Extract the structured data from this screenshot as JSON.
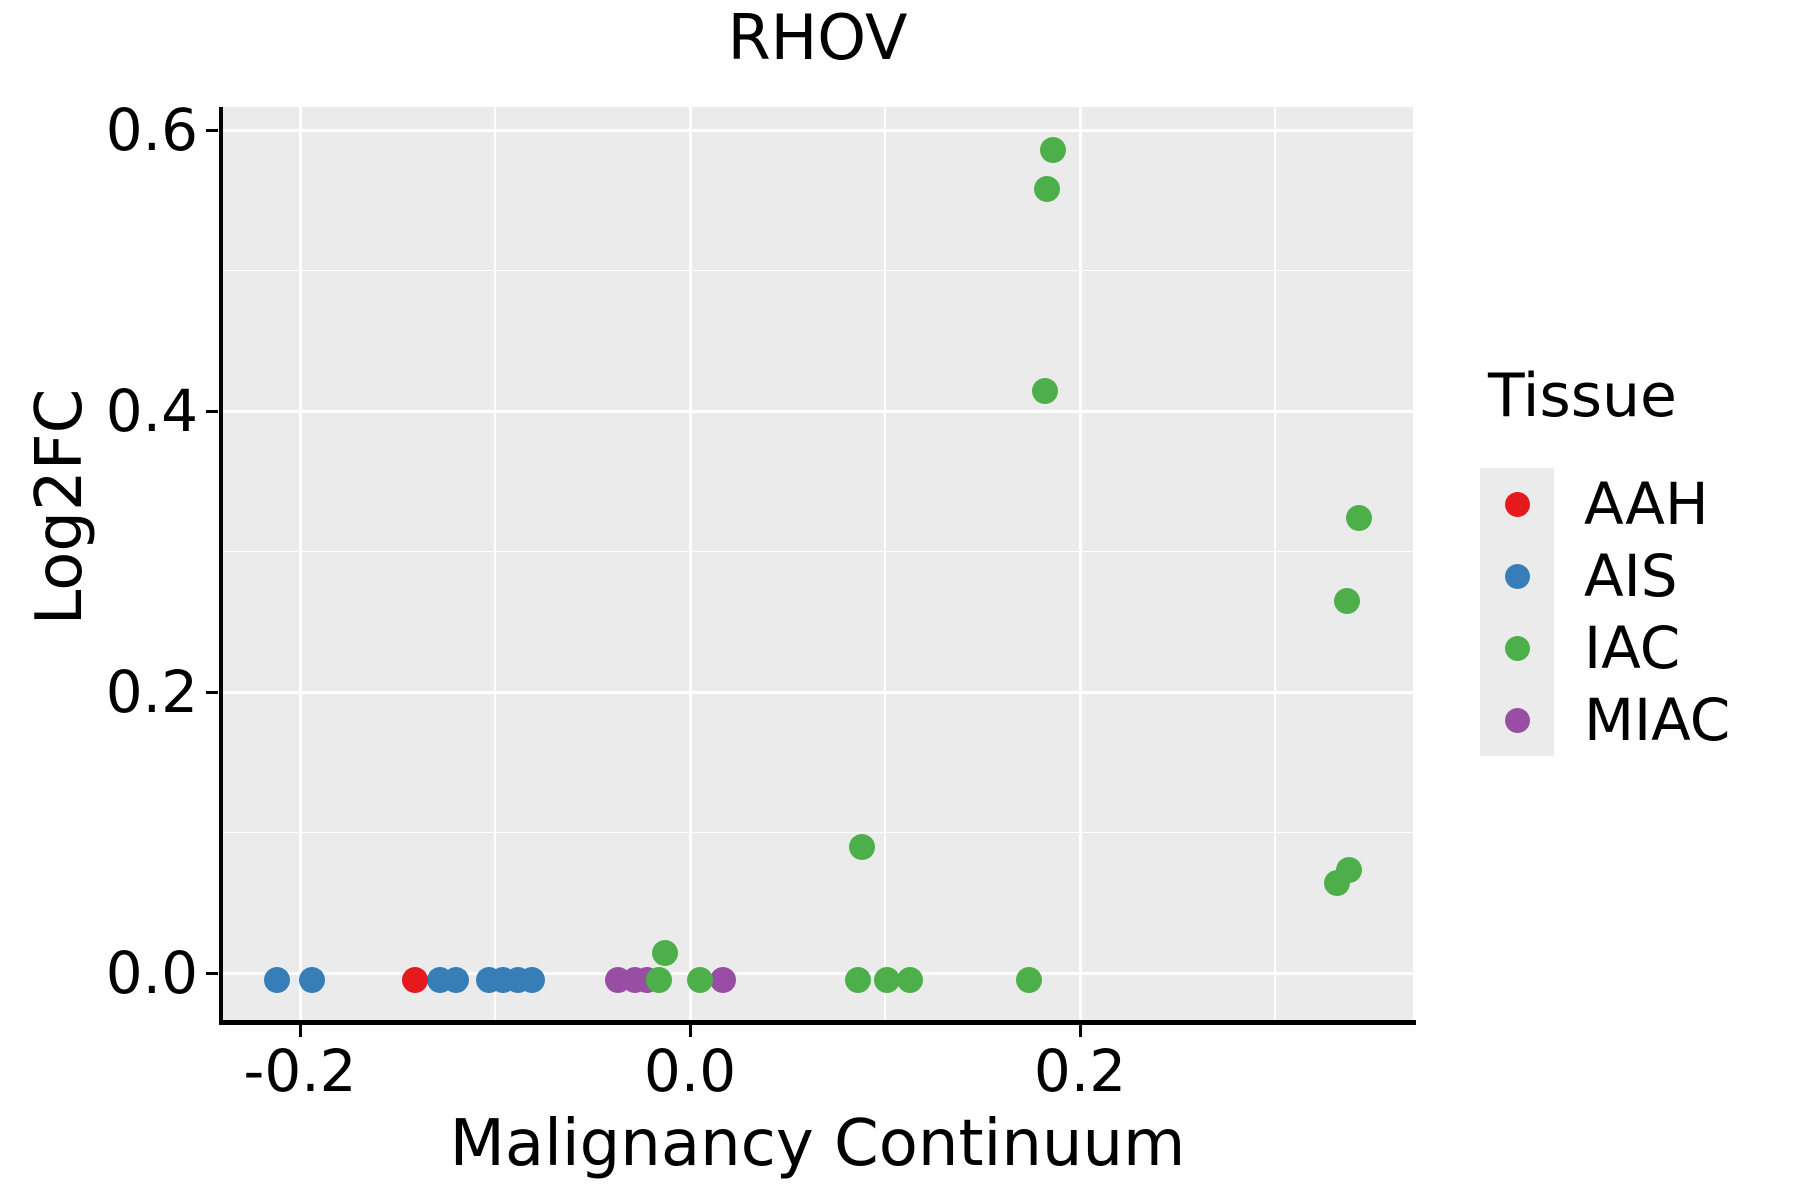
{
  "title": "RHOV",
  "axes": {
    "x": {
      "label": "Malignancy Continuum",
      "tick_labels": [
        "-0.2",
        "0.0",
        "0.2"
      ],
      "tick_values": [
        -0.2,
        0.0,
        0.2
      ],
      "minor_tick_values": [
        -0.1,
        0.1,
        0.3
      ],
      "range": [
        -0.24,
        0.371
      ]
    },
    "y": {
      "label": "Log2FC",
      "tick_labels": [
        "0.0",
        "0.2",
        "0.4",
        "0.6"
      ],
      "tick_values": [
        0.0,
        0.2,
        0.4,
        0.6
      ],
      "minor_tick_values": [
        0.1,
        0.3,
        0.5
      ],
      "range": [
        -0.033,
        0.616
      ]
    }
  },
  "legend": {
    "title": "Tissue",
    "entries": [
      {
        "label": "AAH",
        "color": "#E41A1C"
      },
      {
        "label": "AIS",
        "color": "#377EB8"
      },
      {
        "label": "IAC",
        "color": "#4DAF4A"
      },
      {
        "label": "MIAC",
        "color": "#984EA3"
      }
    ]
  },
  "styling": {
    "panel_background": "#EBEBEB",
    "grid_color": "#FFFFFF",
    "text_color": "#000000",
    "aah_color": "#E41A1C",
    "ais_color": "#377EB8",
    "iac_color": "#4DAF4A",
    "miac_color": "#984EA3"
  },
  "chart_data": {
    "type": "scatter",
    "title": "RHOV",
    "xlabel": "Malignancy Continuum",
    "ylabel": "Log2FC",
    "xlim": [
      -0.24,
      0.371
    ],
    "ylim": [
      -0.033,
      0.616
    ],
    "grid": true,
    "legend_position": "right",
    "series": [
      {
        "name": "AIS",
        "color": "#377EB8",
        "points": [
          [
            -0.212,
            -0.005
          ],
          [
            -0.194,
            -0.005
          ],
          [
            -0.128,
            -0.005
          ],
          [
            -0.12,
            -0.005
          ],
          [
            -0.103,
            -0.005
          ],
          [
            -0.096,
            -0.005
          ],
          [
            -0.088,
            -0.005
          ],
          [
            -0.081,
            -0.005
          ]
        ]
      },
      {
        "name": "AAH",
        "color": "#E41A1C",
        "points": [
          [
            -0.141,
            -0.005
          ]
        ]
      },
      {
        "name": "MIAC",
        "color": "#984EA3",
        "points": [
          [
            -0.037,
            -0.005
          ],
          [
            -0.028,
            -0.005
          ],
          [
            -0.022,
            -0.005
          ],
          [
            0.017,
            -0.005
          ]
        ]
      },
      {
        "name": "IAC",
        "color": "#4DAF4A",
        "points": [
          [
            -0.016,
            -0.005
          ],
          [
            -0.013,
            0.014
          ],
          [
            0.005,
            -0.005
          ],
          [
            0.086,
            -0.005
          ],
          [
            0.088,
            0.09
          ],
          [
            0.101,
            -0.005
          ],
          [
            0.113,
            -0.005
          ],
          [
            0.174,
            -0.005
          ],
          [
            0.182,
            0.414
          ],
          [
            0.183,
            0.558
          ],
          [
            0.186,
            0.586
          ],
          [
            0.332,
            0.064
          ],
          [
            0.338,
            0.073
          ],
          [
            0.337,
            0.265
          ],
          [
            0.343,
            0.324
          ]
        ]
      }
    ]
  }
}
